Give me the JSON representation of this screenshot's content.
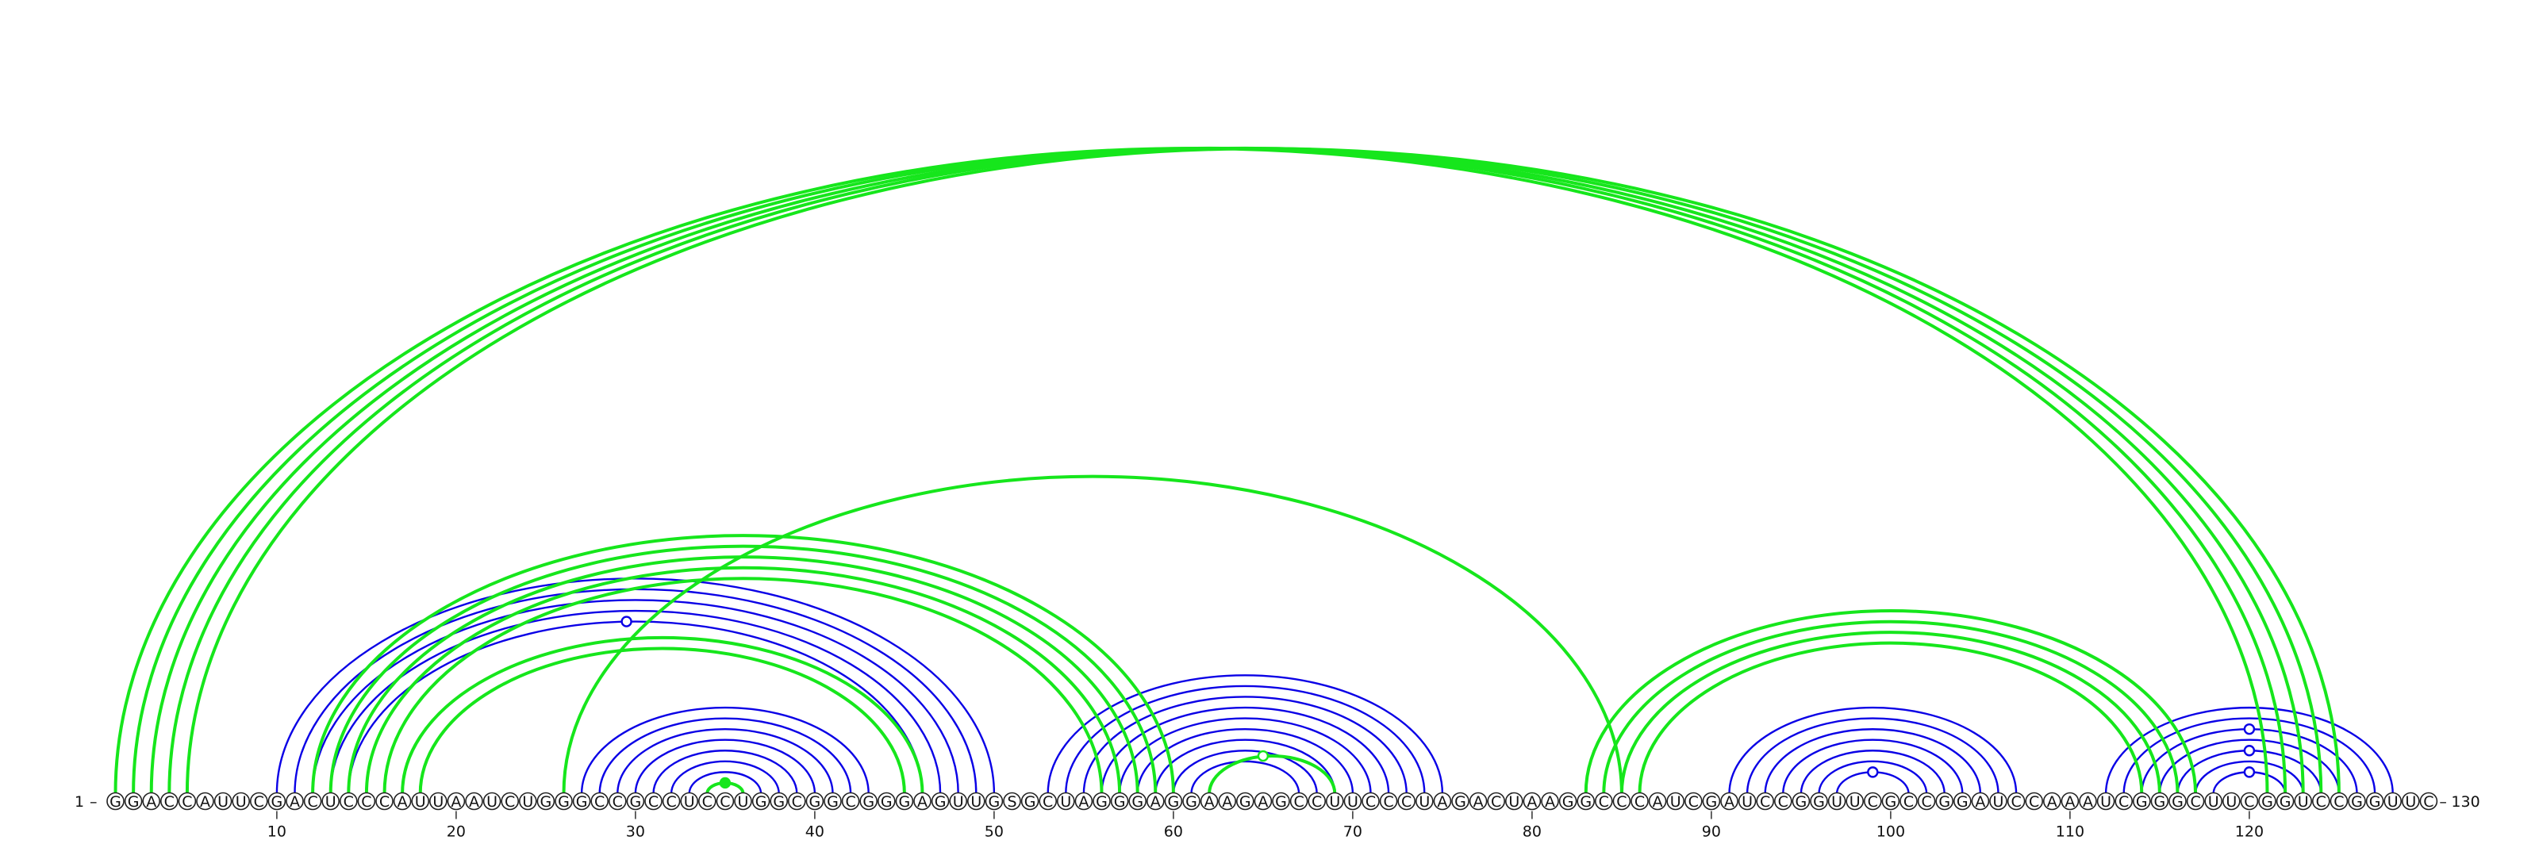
{
  "sequence": "GGACCAUUCGACUCCCAUUAAUCUGGGCCGCCUCCUGGCGGCGGGAGUUGSGCUAGGGAGGAAGAGCCUUCCCUAGACUAAGGCCCAUCGAUCCGGUUCGCCGGAUCCAAAUCGGGCUUCGGUCCGGUUC",
  "labels": {
    "start": "1",
    "end": "130",
    "dash": "–"
  },
  "ticks": [
    "10",
    "20",
    "30",
    "40",
    "50",
    "60",
    "70",
    "80",
    "90",
    "100",
    "110",
    "120"
  ],
  "colors": {
    "blue": "#0a00e6",
    "green": "#16e61c"
  },
  "arcs_blue": [
    [
      10,
      50
    ],
    [
      11,
      49
    ],
    [
      12,
      48
    ],
    [
      13,
      47
    ],
    [
      14,
      46
    ],
    [
      27,
      43
    ],
    [
      28,
      42
    ],
    [
      29,
      41
    ],
    [
      30,
      40
    ],
    [
      31,
      39
    ],
    [
      32,
      38
    ],
    [
      33,
      37
    ],
    [
      53,
      75
    ],
    [
      54,
      74
    ],
    [
      55,
      73
    ],
    [
      56,
      72
    ],
    [
      57,
      71
    ],
    [
      58,
      70
    ],
    [
      59,
      69
    ],
    [
      60,
      68
    ],
    [
      61,
      67
    ],
    [
      91,
      107
    ],
    [
      92,
      106
    ],
    [
      93,
      105
    ],
    [
      94,
      104
    ],
    [
      95,
      103
    ],
    [
      96,
      102
    ],
    [
      97,
      101
    ],
    [
      112,
      128
    ],
    [
      113,
      127
    ],
    [
      114,
      126
    ],
    [
      115,
      125
    ],
    [
      116,
      124
    ],
    [
      117,
      123
    ],
    [
      118,
      122
    ]
  ],
  "arcs_green": [
    [
      1,
      121
    ],
    [
      2,
      122
    ],
    [
      3,
      123
    ],
    [
      4,
      124
    ],
    [
      5,
      125
    ],
    [
      12,
      60
    ],
    [
      13,
      59
    ],
    [
      14,
      58
    ],
    [
      15,
      57
    ],
    [
      16,
      56
    ],
    [
      17,
      46
    ],
    [
      18,
      45
    ],
    [
      26,
      85
    ],
    [
      62,
      69
    ],
    [
      34,
      36
    ],
    [
      83,
      117
    ],
    [
      84,
      116
    ],
    [
      85,
      115
    ],
    [
      86,
      114
    ]
  ],
  "markers": [
    {
      "pos": 29.5,
      "color": "blue",
      "filled": false
    },
    {
      "pos": 35,
      "color": "green",
      "filled": true
    },
    {
      "pos": 65,
      "color": "green",
      "filled": false
    },
    {
      "pos": 99,
      "color": "blue",
      "filled": false
    },
    {
      "pos": 120,
      "color": "blue",
      "filled": false
    },
    {
      "pos": 120,
      "color": "blue",
      "filled": false
    },
    {
      "pos": 120,
      "color": "blue",
      "filled": false
    }
  ]
}
